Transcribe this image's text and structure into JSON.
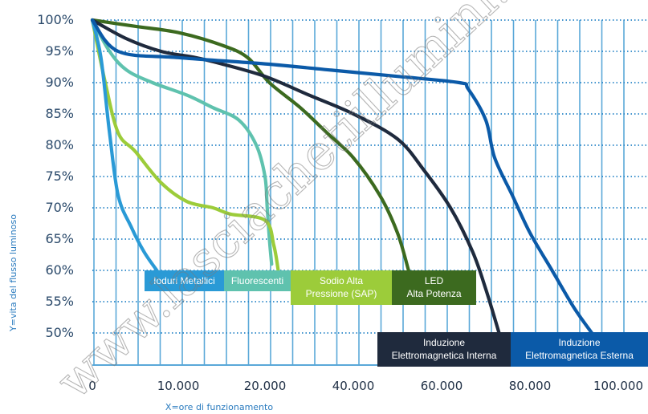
{
  "chart_data": {
    "type": "line",
    "xlabel": "X=ore di funzionamento",
    "ylabel": "Y=vita del flusso luminoso",
    "y_ticks": [
      "100%",
      "95%",
      "90%",
      "85%",
      "80%",
      "75%",
      "70%",
      "65%",
      "60%",
      "55%",
      "50%"
    ],
    "x_ticks": [
      "0",
      "10.000",
      "20.000",
      "40.000",
      "60.000",
      "80.000",
      "100.000"
    ],
    "ylim": [
      50,
      100
    ],
    "grid": true,
    "series": [
      {
        "name": "Ioduri Metallici",
        "color": "#2a9ad6",
        "points": [
          [
            0,
            100
          ],
          [
            1000,
            94
          ],
          [
            2000,
            82
          ],
          [
            3000,
            72
          ],
          [
            4500,
            67
          ],
          [
            6000,
            63
          ],
          [
            7500,
            60
          ]
        ]
      },
      {
        "name": "Fluorescenti",
        "color": "#5fc2ae",
        "points": [
          [
            0,
            100
          ],
          [
            2000,
            95
          ],
          [
            4000,
            92
          ],
          [
            7000,
            90
          ],
          [
            11000,
            88
          ],
          [
            14000,
            86
          ],
          [
            17000,
            84
          ],
          [
            19000,
            80
          ],
          [
            20000,
            75
          ],
          [
            20500,
            70
          ],
          [
            21000,
            65
          ],
          [
            21500,
            61
          ]
        ]
      },
      {
        "name": "Sodio Alta Pressione (SAP)",
        "color": "#9ccc3a",
        "points": [
          [
            0,
            100
          ],
          [
            1500,
            90
          ],
          [
            3000,
            82
          ],
          [
            5000,
            79
          ],
          [
            8000,
            74
          ],
          [
            11000,
            71
          ],
          [
            14000,
            70
          ],
          [
            16000,
            69
          ],
          [
            20000,
            68
          ],
          [
            22000,
            64
          ],
          [
            23000,
            60
          ]
        ]
      },
      {
        "name": "LED Alta Potenza",
        "color": "#3c6a1f",
        "points": [
          [
            0,
            100
          ],
          [
            5000,
            99
          ],
          [
            10000,
            98
          ],
          [
            15000,
            96
          ],
          [
            18000,
            94
          ],
          [
            21000,
            90
          ],
          [
            28000,
            86
          ],
          [
            34000,
            82
          ],
          [
            40000,
            78
          ],
          [
            46000,
            72
          ],
          [
            50000,
            66
          ],
          [
            52500,
            60
          ]
        ]
      },
      {
        "name": "Induzione Elettromagnetica Interna",
        "color": "#1f2a3d",
        "points": [
          [
            0,
            100
          ],
          [
            4000,
            97
          ],
          [
            8000,
            95
          ],
          [
            12000,
            94
          ],
          [
            15000,
            93
          ],
          [
            20000,
            91
          ],
          [
            30000,
            88
          ],
          [
            40000,
            85
          ],
          [
            50000,
            81
          ],
          [
            56000,
            76
          ],
          [
            62000,
            70
          ],
          [
            67000,
            63
          ],
          [
            70000,
            57
          ],
          [
            73000,
            50
          ]
        ]
      },
      {
        "name": "Induzione Elettromagnetica Esterna",
        "color": "#0b5aa8",
        "points": [
          [
            0,
            100
          ],
          [
            3000,
            95
          ],
          [
            10000,
            94
          ],
          [
            20000,
            93
          ],
          [
            35000,
            92
          ],
          [
            50000,
            91
          ],
          [
            64000,
            90
          ],
          [
            66000,
            89
          ],
          [
            70000,
            84
          ],
          [
            72000,
            78
          ],
          [
            76000,
            72
          ],
          [
            80000,
            66
          ],
          [
            85000,
            60
          ],
          [
            90000,
            54
          ],
          [
            94000,
            50
          ]
        ]
      }
    ]
  },
  "labels": [
    {
      "series": "Ioduri Metallici",
      "lines": [
        "Ioduri Metallici"
      ],
      "color": "#2a9ad6"
    },
    {
      "series": "Fluorescenti",
      "lines": [
        "Fluorescenti"
      ],
      "color": "#5fc2ae"
    },
    {
      "series": "Sodio Alta Pressione (SAP)",
      "lines": [
        "Sodio Alta",
        "Pressione (SAP)"
      ],
      "color": "#9ccc3a"
    },
    {
      "series": "LED Alta Potenza",
      "lines": [
        "LED",
        "Alta Potenza"
      ],
      "color": "#3c6a1f"
    },
    {
      "series": "Induzione Elettromagnetica Interna",
      "lines": [
        "Induzione",
        "Elettromagnetica Interna"
      ],
      "color": "#1f2a3d"
    },
    {
      "series": "Induzione Elettromagnetica Esterna",
      "lines": [
        "Induzione",
        "Elettromagnetica Esterna"
      ],
      "color": "#0b5aa8"
    }
  ],
  "watermark": "www.lasciachetiillumini.it",
  "colors": {
    "grid": "#5aa8d8",
    "background": "#ffffff"
  }
}
